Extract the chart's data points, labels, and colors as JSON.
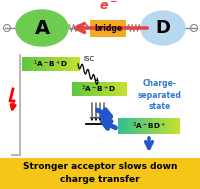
{
  "bg_color": "#ffffff",
  "bottom_banner_color": "#f5c518",
  "bottom_text": "Stronger acceptor slows down\ncharge transfer",
  "bottom_text_color": "#000000",
  "A_color": "#6dcb50",
  "D_color": "#b8d8f0",
  "bridge_color": "#f5a820",
  "arrow_red": "#e84040",
  "arrow_blue": "#2255cc",
  "charge_sep_color": "#3377cc",
  "charge_sep_text": "Charge-\nseparated\nstate",
  "ISC_label": "ISC",
  "green_left": "#5dc840",
  "green_right": "#c8e030",
  "teal_left": "#30c090",
  "teal_right": "#c8e030"
}
